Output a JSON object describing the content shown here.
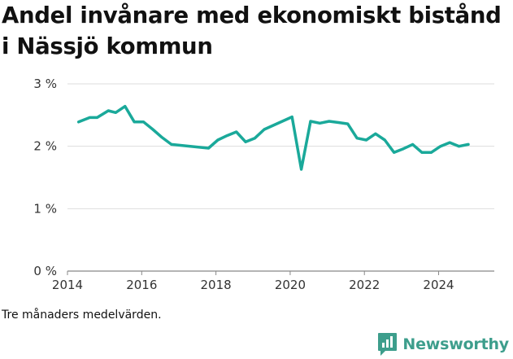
{
  "title": "Andel invånare med ekonomiskt bistånd i Nässjö kommun",
  "note": "Tre månaders medelvärden.",
  "brand": {
    "name": "Newsworthy",
    "color": "#3d9e8c"
  },
  "chart_data": {
    "type": "line",
    "title": "Andel invånare med ekonomiskt bistånd i Nässjö kommun",
    "xlabel": "",
    "ylabel": "",
    "xlim": [
      2014,
      2025.5
    ],
    "ylim": [
      0,
      3
    ],
    "x_ticks": [
      2014,
      2016,
      2018,
      2020,
      2022,
      2024
    ],
    "y_ticks": [
      {
        "value": 0,
        "label": "0 %"
      },
      {
        "value": 1,
        "label": "1 %"
      },
      {
        "value": 2,
        "label": "2 %"
      },
      {
        "value": 3,
        "label": "3 %"
      }
    ],
    "grid": "horizontal",
    "line_color": "#1aa99a",
    "series": [
      {
        "x": [
          2014.3,
          2014.6,
          2014.8,
          2015.1,
          2015.3,
          2015.55,
          2015.8,
          2016.05,
          2016.3,
          2016.55,
          2016.8,
          2017.8,
          2018.05,
          2018.3,
          2018.55,
          2018.8,
          2019.05,
          2019.3,
          2020.05,
          2020.3,
          2020.55,
          2020.8,
          2021.05,
          2021.3,
          2021.55,
          2021.8,
          2022.05,
          2022.3,
          2022.55,
          2022.8,
          2023.05,
          2023.3,
          2023.55,
          2023.8,
          2024.05,
          2024.3,
          2024.55,
          2024.8
        ],
        "y": [
          2.39,
          2.46,
          2.46,
          2.57,
          2.54,
          2.64,
          2.39,
          2.39,
          2.27,
          2.14,
          2.03,
          1.97,
          2.1,
          2.17,
          2.23,
          2.07,
          2.13,
          2.27,
          2.47,
          1.63,
          2.4,
          2.37,
          2.4,
          2.38,
          2.36,
          2.13,
          2.1,
          2.2,
          2.1,
          1.9,
          1.96,
          2.03,
          1.9,
          1.9,
          2.0,
          2.06,
          2.0,
          2.03
        ]
      }
    ]
  }
}
